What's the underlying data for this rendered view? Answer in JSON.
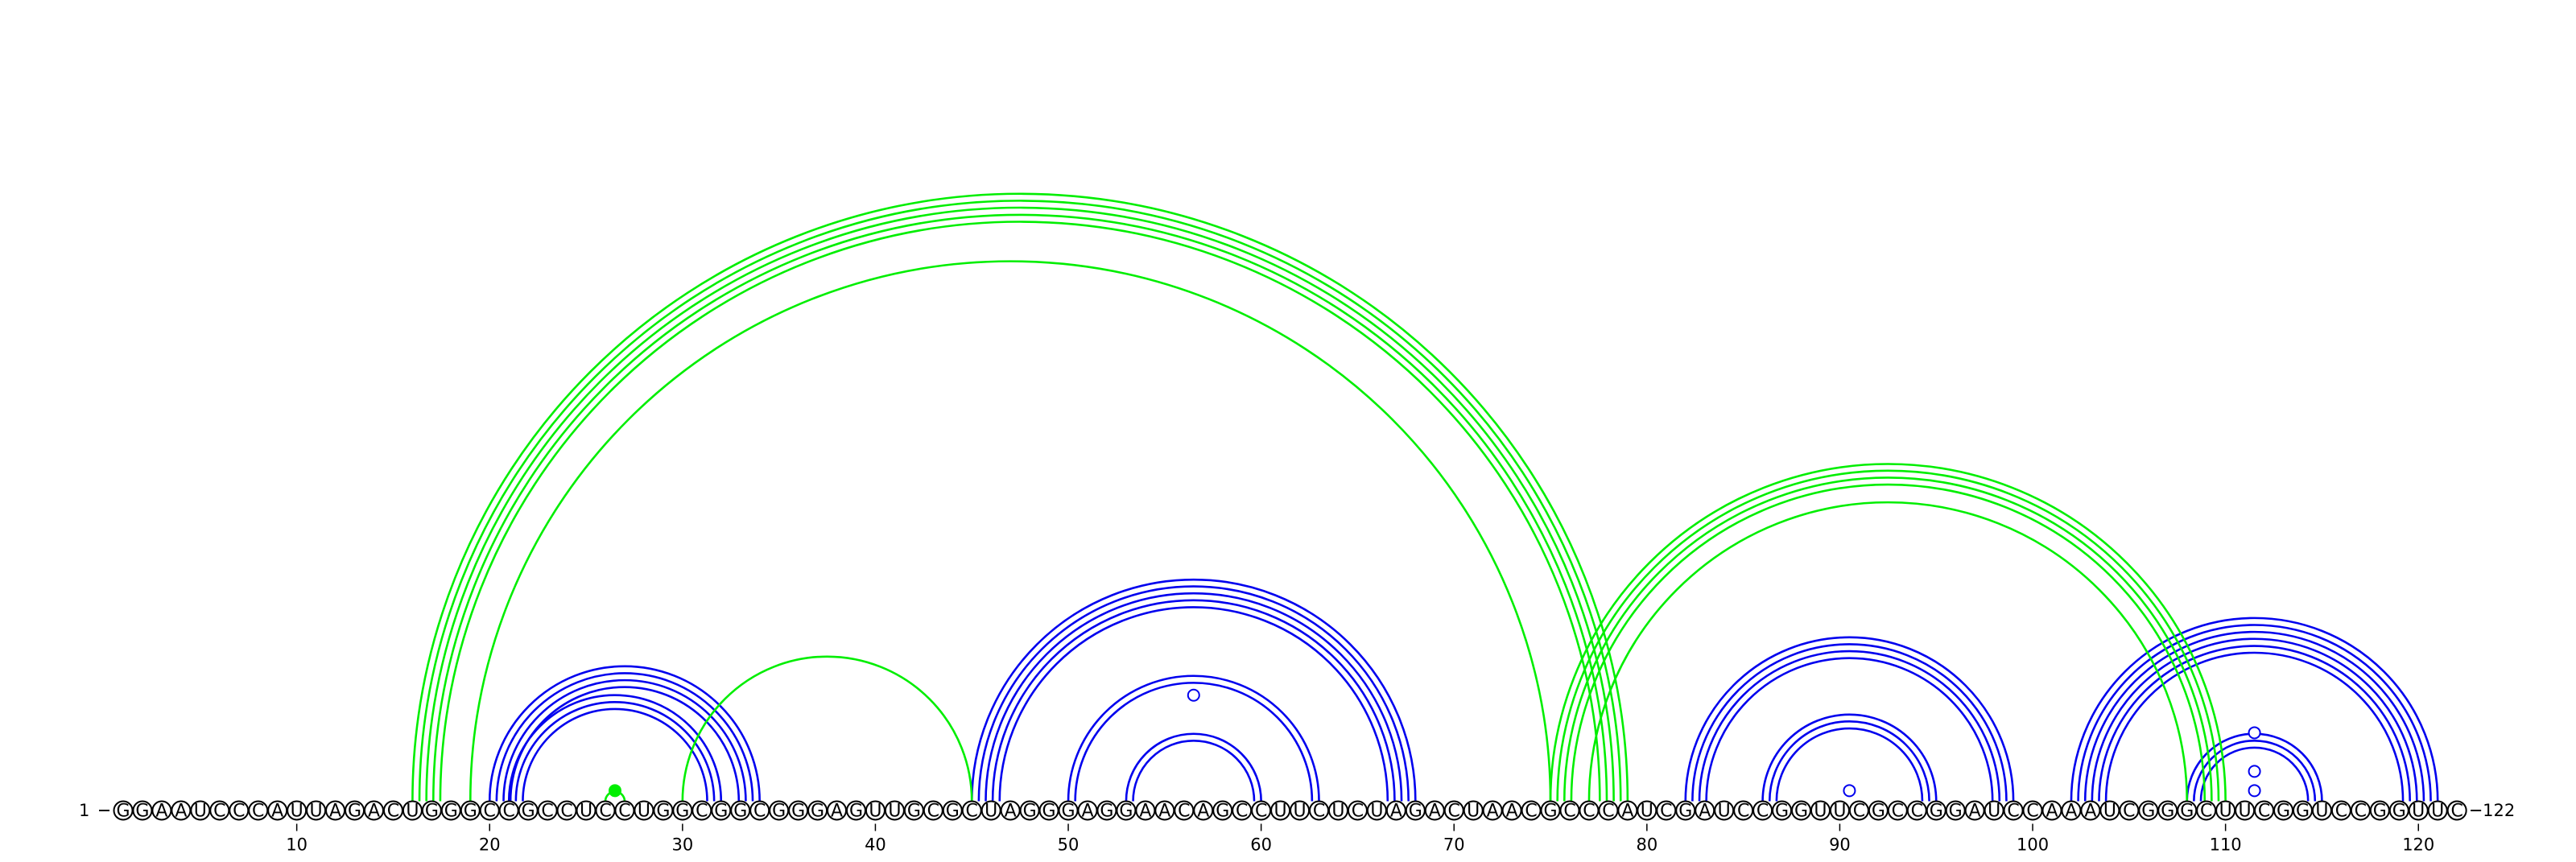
{
  "diagram": {
    "type": "rna-arc-diagram",
    "sequence": "GGAAUCCCAUUAGACUGGGCCGCCUCCUGGCGGCGGGAGUUGCGCUAGGGAGGAACAGCCUUCUCUAGACUAACGCCCAUCGAUCCGGUUCGCCGGAUCCAAAUCGGGCUUCGGUCCGGUUC",
    "start_label": "1",
    "end_label": "122",
    "tick_labels": [
      "10",
      "20",
      "30",
      "40",
      "50",
      "60",
      "70",
      "80",
      "90",
      "100",
      "110",
      "120"
    ],
    "colors": {
      "blue": "#0000ee",
      "green": "#00ee00"
    },
    "blue_helices": [
      {
        "i": 20,
        "j": 34,
        "n": 4
      },
      {
        "i": 21,
        "j": 32,
        "n": 3
      },
      {
        "i": 45,
        "j": 68,
        "n": 5
      },
      {
        "i": 50,
        "j": 63,
        "n": 2
      },
      {
        "i": 53,
        "j": 60,
        "n": 2
      },
      {
        "i": 82,
        "j": 99,
        "n": 4
      },
      {
        "i": 86,
        "j": 95,
        "n": 3
      },
      {
        "i": 102,
        "j": 121,
        "n": 6
      },
      {
        "i": 108,
        "j": 115,
        "n": 3
      }
    ],
    "green_helices": [
      {
        "i": 16,
        "j": 79,
        "n": 5
      },
      {
        "i": 19,
        "j": 75,
        "n": 1
      },
      {
        "i": 30,
        "j": 45,
        "n": 1
      },
      {
        "i": 26,
        "j": 27,
        "n": 1
      },
      {
        "i": 75,
        "j": 110,
        "n": 4
      },
      {
        "i": 77,
        "j": 108,
        "n": 1
      }
    ],
    "markers": [
      {
        "pos": 26.5,
        "rad": 0.55,
        "fill": "green"
      },
      {
        "pos": 56.5,
        "rad": 5.5,
        "fill": "none"
      },
      {
        "pos": 90.5,
        "rad": 0.55,
        "fill": "none"
      },
      {
        "pos": 111.5,
        "rad": 0.55,
        "fill": "none"
      },
      {
        "pos": 111.5,
        "rad": 1.55,
        "fill": "none"
      },
      {
        "pos": 111.5,
        "rad": 3.55,
        "fill": "none"
      }
    ]
  }
}
